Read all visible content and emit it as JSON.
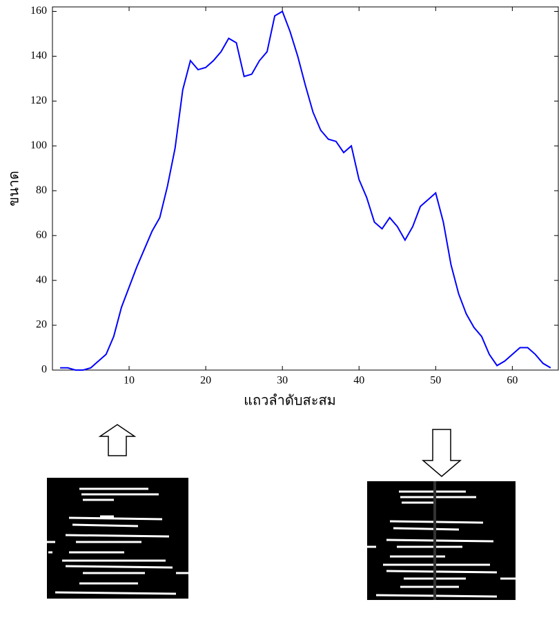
{
  "chart_data": {
    "type": "line",
    "x_label": "แถวลำดับสะสม",
    "y_label": "ขนาด",
    "x": [
      1,
      2,
      3,
      4,
      5,
      6,
      7,
      8,
      9,
      10,
      11,
      12,
      13,
      14,
      15,
      16,
      17,
      18,
      19,
      20,
      21,
      22,
      23,
      24,
      25,
      26,
      27,
      28,
      29,
      30,
      31,
      32,
      33,
      34,
      35,
      36,
      37,
      38,
      39,
      40,
      41,
      42,
      43,
      44,
      45,
      46,
      47,
      48,
      49,
      50,
      51,
      52,
      53,
      54,
      55,
      56,
      57,
      58,
      59,
      60,
      61,
      62,
      63,
      64,
      65
    ],
    "series": [
      {
        "color": "#0000ff",
        "values": [
          1,
          1,
          0,
          0,
          1,
          4,
          7,
          15,
          28,
          37,
          46,
          54,
          62,
          68,
          82,
          99,
          125,
          138,
          134,
          135,
          138,
          142,
          148,
          146,
          131,
          132,
          138,
          142,
          158,
          160,
          151,
          140,
          127,
          115,
          107,
          103,
          102,
          97,
          100,
          85,
          77,
          66,
          63,
          68,
          64,
          58,
          64,
          73,
          76,
          79,
          66,
          47,
          34,
          25,
          19,
          15,
          7,
          2,
          4,
          7,
          10,
          10,
          7,
          3,
          1
        ]
      }
    ],
    "xlim": [
      0,
      66
    ],
    "ylim": [
      0,
      162
    ],
    "xticks": [
      10,
      20,
      30,
      40,
      50,
      60
    ],
    "yticks": [
      0,
      20,
      40,
      60,
      80,
      100,
      120,
      140,
      160
    ]
  }
}
